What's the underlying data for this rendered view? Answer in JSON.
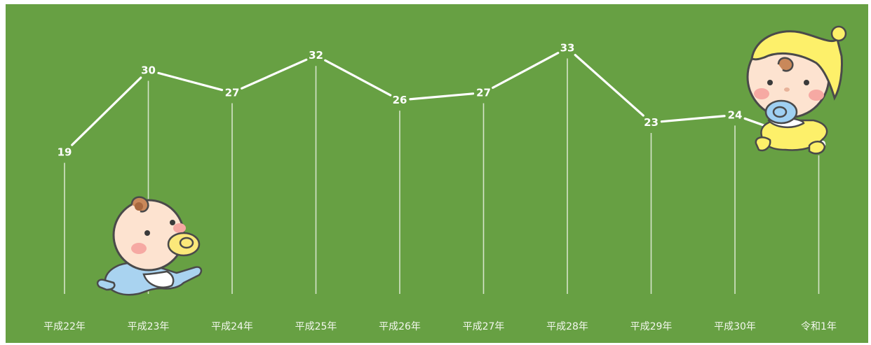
{
  "chart_data": {
    "type": "line",
    "categories": [
      "平成22年",
      "平成23年",
      "平成24年",
      "平成25年",
      "平成26年",
      "平成27年",
      "平成28年",
      "平成29年",
      "平成30年",
      "令和1年"
    ],
    "values": [
      19,
      30,
      27,
      32,
      26,
      27,
      33,
      23,
      24,
      20
    ],
    "title": "",
    "xlabel": "",
    "ylabel": "",
    "ylim": [
      0,
      36
    ],
    "grid": false,
    "legend": "none",
    "colors": {
      "background": "#67a043",
      "line": "#ffffff",
      "drop_line": "#e9f1e2"
    },
    "decorations": [
      "crawling-baby-illustration",
      "sitting-baby-illustration"
    ]
  }
}
